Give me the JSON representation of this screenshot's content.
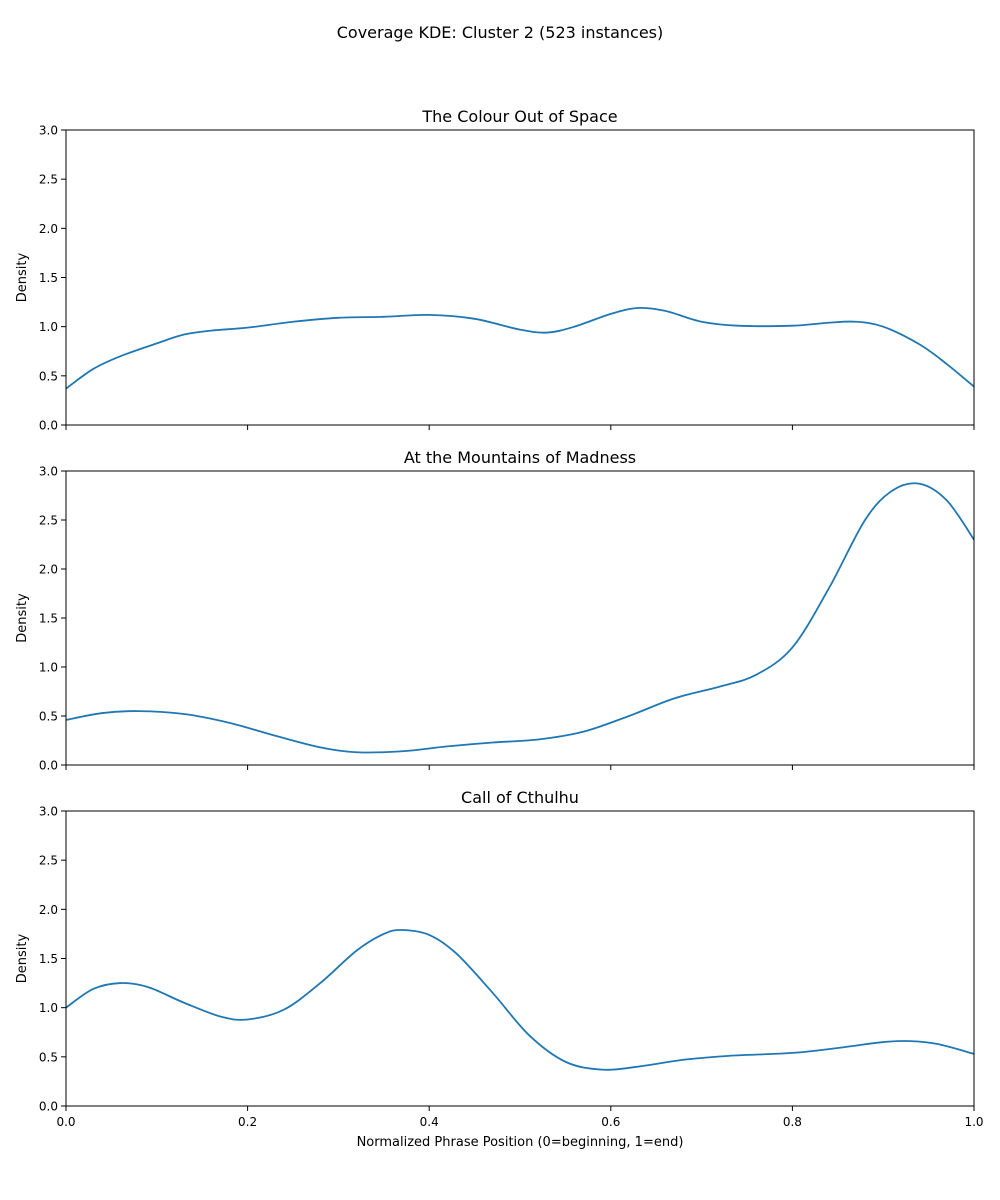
{
  "figure": {
    "suptitle": "Coverage KDE: Cluster 2 (523 instances)",
    "xlabel": "Normalized Phrase Position (0=beginning, 1=end)"
  },
  "chart_data": [
    {
      "type": "line",
      "title": "The Colour Out of Space",
      "ylabel": "Density",
      "xlim": [
        0,
        1
      ],
      "ylim": [
        0,
        3
      ],
      "xticks": [
        "0.0",
        "0.2",
        "0.4",
        "0.6",
        "0.8",
        "1.0"
      ],
      "yticks": [
        "0.0",
        "0.5",
        "1.0",
        "1.5",
        "2.0",
        "2.5",
        "3.0"
      ],
      "show_xtick_labels": false,
      "color": "#1f77b4",
      "x": [
        0.0,
        0.03,
        0.06,
        0.1,
        0.13,
        0.16,
        0.2,
        0.25,
        0.3,
        0.35,
        0.4,
        0.45,
        0.5,
        0.53,
        0.56,
        0.6,
        0.63,
        0.66,
        0.7,
        0.74,
        0.8,
        0.84,
        0.87,
        0.9,
        0.94,
        0.97,
        1.0
      ],
      "y": [
        0.37,
        0.57,
        0.7,
        0.83,
        0.92,
        0.96,
        0.99,
        1.05,
        1.09,
        1.1,
        1.12,
        1.08,
        0.97,
        0.94,
        1.0,
        1.13,
        1.19,
        1.16,
        1.05,
        1.01,
        1.01,
        1.04,
        1.05,
        1.0,
        0.82,
        0.62,
        0.39
      ]
    },
    {
      "type": "line",
      "title": "At the Mountains of Madness",
      "ylabel": "Density",
      "xlim": [
        0,
        1
      ],
      "ylim": [
        0,
        3
      ],
      "xticks": [
        "0.0",
        "0.2",
        "0.4",
        "0.6",
        "0.8",
        "1.0"
      ],
      "yticks": [
        "0.0",
        "0.5",
        "1.0",
        "1.5",
        "2.0",
        "2.5",
        "3.0"
      ],
      "show_xtick_labels": false,
      "color": "#1f77b4",
      "x": [
        0.0,
        0.04,
        0.08,
        0.13,
        0.18,
        0.23,
        0.28,
        0.32,
        0.37,
        0.42,
        0.47,
        0.52,
        0.57,
        0.62,
        0.67,
        0.72,
        0.76,
        0.8,
        0.84,
        0.88,
        0.91,
        0.94,
        0.97,
        1.0
      ],
      "y": [
        0.46,
        0.53,
        0.55,
        0.52,
        0.43,
        0.3,
        0.18,
        0.13,
        0.14,
        0.19,
        0.23,
        0.26,
        0.34,
        0.5,
        0.68,
        0.8,
        0.92,
        1.2,
        1.8,
        2.5,
        2.8,
        2.87,
        2.7,
        2.3
      ]
    },
    {
      "type": "line",
      "title": "Call of Cthulhu",
      "ylabel": "Density",
      "xlim": [
        0,
        1
      ],
      "ylim": [
        0,
        3
      ],
      "xticks": [
        "0.0",
        "0.2",
        "0.4",
        "0.6",
        "0.8",
        "1.0"
      ],
      "yticks": [
        "0.0",
        "0.5",
        "1.0",
        "1.5",
        "2.0",
        "2.5",
        "3.0"
      ],
      "show_xtick_labels": true,
      "color": "#1f77b4",
      "x": [
        0.0,
        0.03,
        0.06,
        0.09,
        0.13,
        0.17,
        0.2,
        0.24,
        0.28,
        0.32,
        0.35,
        0.37,
        0.4,
        0.43,
        0.47,
        0.51,
        0.55,
        0.59,
        0.63,
        0.68,
        0.73,
        0.8,
        0.85,
        0.9,
        0.93,
        0.96,
        1.0
      ],
      "y": [
        1.0,
        1.19,
        1.25,
        1.21,
        1.05,
        0.91,
        0.88,
        0.98,
        1.25,
        1.58,
        1.75,
        1.79,
        1.74,
        1.55,
        1.15,
        0.72,
        0.45,
        0.37,
        0.4,
        0.47,
        0.51,
        0.54,
        0.59,
        0.65,
        0.66,
        0.63,
        0.53
      ]
    }
  ]
}
